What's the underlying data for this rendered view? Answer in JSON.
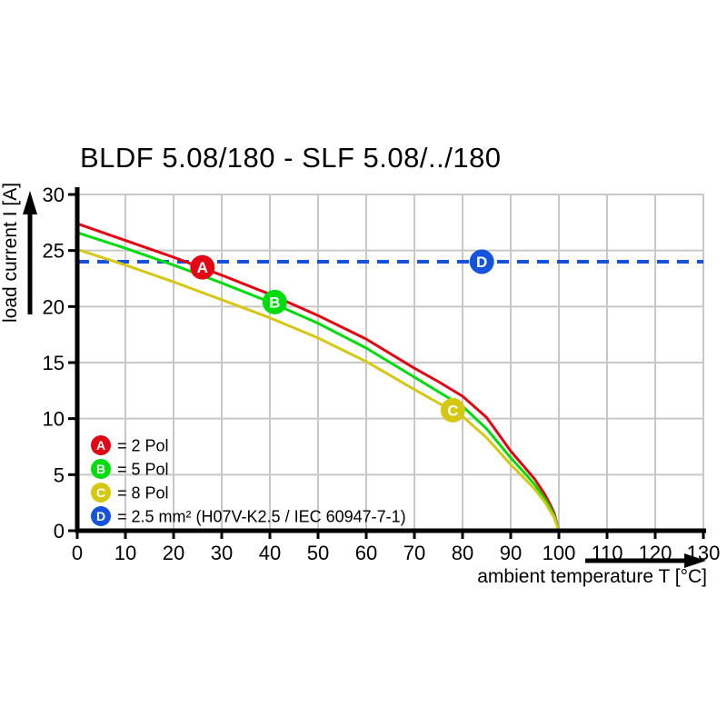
{
  "chart_data": {
    "type": "line",
    "title": "BLDF 5.08/180 - SLF 5.08/../180",
    "xlabel": "ambient temperature T [°C]",
    "ylabel": "load current I [A]",
    "xlim": [
      0,
      130
    ],
    "ylim": [
      0,
      30
    ],
    "x_ticks": [
      0,
      10,
      20,
      30,
      40,
      50,
      60,
      70,
      80,
      90,
      100,
      110,
      120,
      130
    ],
    "y_ticks": [
      0,
      5,
      10,
      15,
      20,
      25,
      30
    ],
    "grid": true,
    "grid_color": "#c8c8c8",
    "axis_color": "#000000",
    "legend_position": "lower-left-inside",
    "series": [
      {
        "id": "A",
        "label": "= 2 Pol",
        "color": "#e30613",
        "style": "solid",
        "x": [
          0,
          10,
          20,
          30,
          40,
          50,
          60,
          70,
          75,
          80,
          85,
          90,
          93,
          95,
          97,
          98,
          99,
          100
        ],
        "y": [
          27.4,
          25.9,
          24.4,
          22.8,
          21.1,
          19.2,
          17.1,
          14.5,
          13.3,
          12.0,
          10.1,
          7.1,
          5.6,
          4.6,
          3.3,
          2.5,
          1.6,
          0
        ],
        "marker": {
          "letter": "A",
          "T": 26,
          "I": 23.5
        }
      },
      {
        "id": "B",
        "label": "= 5 Pol",
        "color": "#00dd0c",
        "style": "solid",
        "x": [
          0,
          10,
          20,
          30,
          40,
          50,
          60,
          70,
          75,
          80,
          85,
          90,
          93,
          95,
          97,
          98,
          99,
          100
        ],
        "y": [
          26.6,
          25.2,
          23.7,
          22.1,
          20.4,
          18.5,
          16.3,
          13.7,
          12.4,
          11.1,
          9.1,
          6.5,
          5.1,
          4.1,
          2.9,
          2.2,
          1.4,
          0
        ],
        "marker": {
          "letter": "B",
          "T": 41,
          "I": 20.4
        }
      },
      {
        "id": "C",
        "label": "= 8 Pol",
        "color": "#d6c713",
        "style": "solid",
        "x": [
          0,
          10,
          20,
          30,
          40,
          50,
          60,
          70,
          75,
          80,
          85,
          90,
          93,
          95,
          97,
          98,
          99,
          100
        ],
        "y": [
          25.1,
          23.7,
          22.2,
          20.6,
          19.0,
          17.2,
          15.1,
          12.6,
          11.4,
          10.2,
          8.3,
          5.9,
          4.6,
          3.7,
          2.6,
          1.9,
          1.2,
          0
        ],
        "marker": {
          "letter": "C",
          "T": 78,
          "I": 10.75
        }
      },
      {
        "id": "D",
        "label": "= 2.5 mm² (H07V-K2.5 / IEC 60947-7-1)",
        "color": "#1553dc",
        "style": "dashed",
        "x": [
          0,
          130
        ],
        "y": [
          24,
          24
        ],
        "marker": {
          "letter": "D",
          "T": 84,
          "I": 24
        }
      }
    ]
  }
}
